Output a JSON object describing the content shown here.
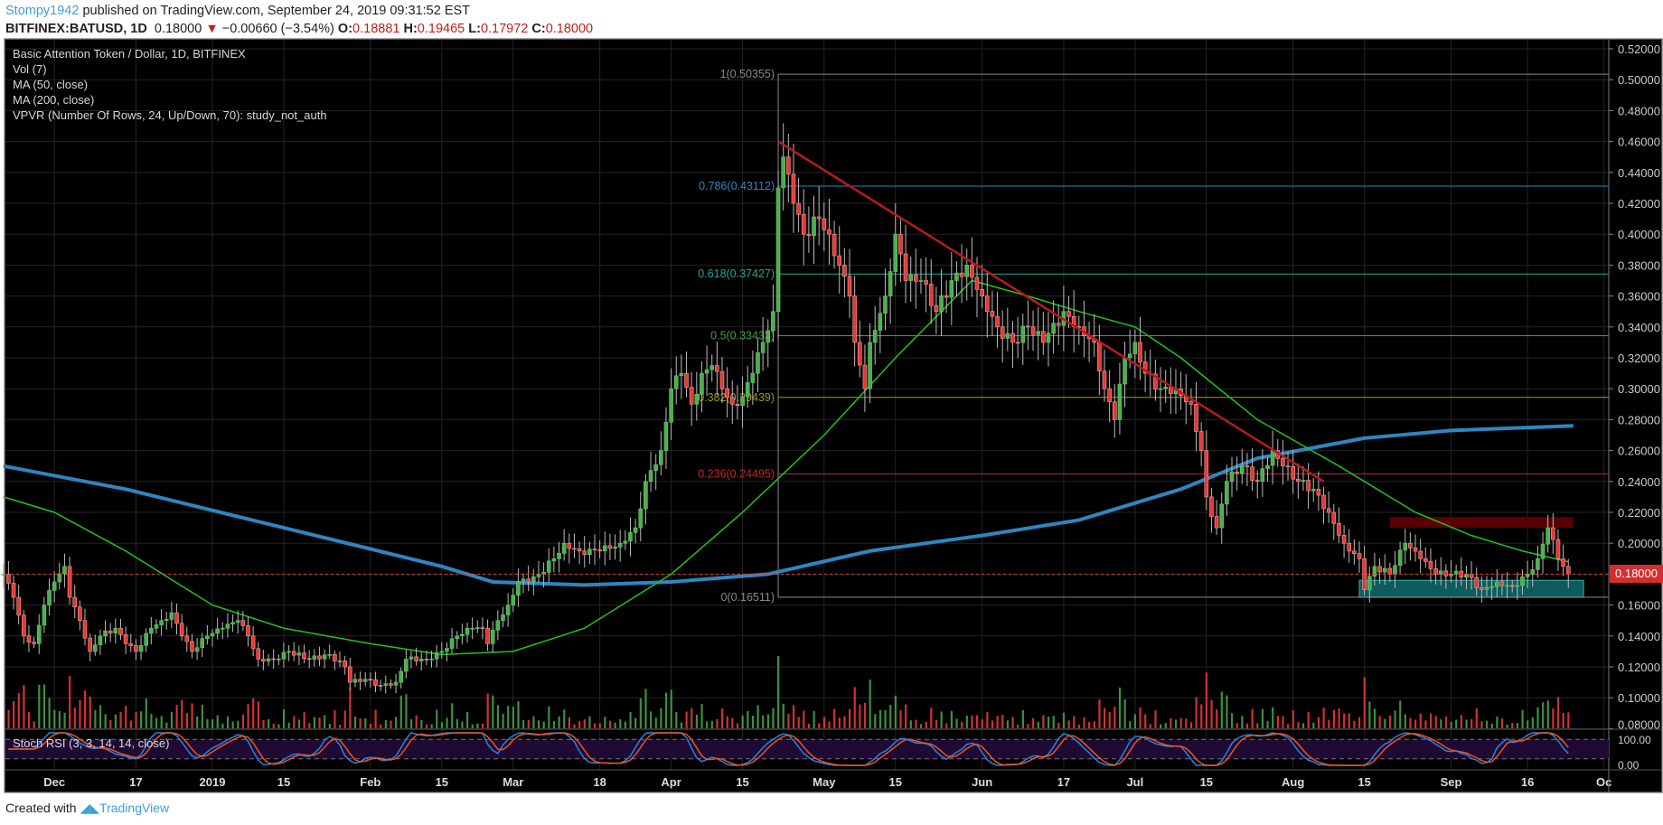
{
  "header": {
    "author": "Stompy1942",
    "published": " published on TradingView.com, September 24, 2019 09:31:52 EST",
    "symbol": "BITFINEX:BATUSD, 1D",
    "last": "0.18000",
    "change": "−0.00660 (−3.54%)",
    "o_label": "O:",
    "o": "0.18881",
    "h_label": "H:",
    "h": "0.19465",
    "l_label": "L:",
    "l": "0.17972",
    "c_label": "C:",
    "c": "0.18000",
    "down_icon": "triangle-down-icon"
  },
  "legend": [
    "Basic Attention Token / Dollar, 1D, BITFINEX",
    "Vol (7)",
    "MA (50, close)",
    "MA (200, close)",
    "VPVR (Number Of Rows, 24, Up/Down, 70): study_not_auth"
  ],
  "stoch_label": "Stoch RSI (3, 3, 14, 14, close)",
  "footer": {
    "created": "Created with",
    "brand": "TradingView"
  },
  "colors": {
    "up": "#4caf50",
    "down": "#e53935",
    "ma50": "#22c322",
    "ma200": "#2e86c1",
    "trend": "#b71c1c",
    "resistance": "#5a0000",
    "support": "#0d5c5c",
    "stoch_k": "#1e88e5",
    "stoch_d": "#f4511e",
    "stoch_band": "#1f0a33"
  },
  "chart_data": {
    "type": "candlestick",
    "title": "Basic Attention Token / Dollar, 1D, BITFINEX",
    "ylim": [
      0.0,
      0.53
    ],
    "y_ticks": [
      "0.52000",
      "0.50000",
      "0.48000",
      "0.46000",
      "0.44000",
      "0.42000",
      "0.40000",
      "0.38000",
      "0.36000",
      "0.34000",
      "0.32000",
      "0.30000",
      "0.28000",
      "0.26000",
      "0.24000",
      "0.22000",
      "0.20000",
      "0.18000",
      "0.16000",
      "0.14000",
      "0.12000",
      "0.10000",
      "0.08000"
    ],
    "x_ticks": [
      {
        "label": "Dec",
        "date": "2018-12-01"
      },
      {
        "label": "17",
        "date": "2018-12-17"
      },
      {
        "label": "2019",
        "date": "2019-01-01"
      },
      {
        "label": "15",
        "date": "2019-01-15"
      },
      {
        "label": "Feb",
        "date": "2019-02-01"
      },
      {
        "label": "15",
        "date": "2019-02-15"
      },
      {
        "label": "Mar",
        "date": "2019-03-01"
      },
      {
        "label": "18",
        "date": "2019-03-18"
      },
      {
        "label": "Apr",
        "date": "2019-04-01"
      },
      {
        "label": "15",
        "date": "2019-04-15"
      },
      {
        "label": "May",
        "date": "2019-05-01"
      },
      {
        "label": "15",
        "date": "2019-05-15"
      },
      {
        "label": "Jun",
        "date": "2019-06-01"
      },
      {
        "label": "17",
        "date": "2019-06-17"
      },
      {
        "label": "Jul",
        "date": "2019-07-01"
      },
      {
        "label": "15",
        "date": "2019-07-15"
      },
      {
        "label": "Aug",
        "date": "2019-08-01"
      },
      {
        "label": "15",
        "date": "2019-08-15"
      },
      {
        "label": "Sep",
        "date": "2019-09-01"
      },
      {
        "label": "16",
        "date": "2019-09-16"
      },
      {
        "label": "Oc",
        "date": "2019-10-01"
      }
    ],
    "current_price": "0.18000",
    "close_anchors": [
      [
        "2018-11-21",
        0.18
      ],
      [
        "2018-11-23",
        0.165
      ],
      [
        "2018-11-25",
        0.14
      ],
      [
        "2018-11-27",
        0.135
      ],
      [
        "2018-11-29",
        0.16
      ],
      [
        "2018-12-01",
        0.175
      ],
      [
        "2018-12-03",
        0.185
      ],
      [
        "2018-12-04",
        0.165
      ],
      [
        "2018-12-06",
        0.15
      ],
      [
        "2018-12-08",
        0.13
      ],
      [
        "2018-12-10",
        0.14
      ],
      [
        "2018-12-13",
        0.145
      ],
      [
        "2018-12-15",
        0.135
      ],
      [
        "2018-12-17",
        0.13
      ],
      [
        "2018-12-20",
        0.145
      ],
      [
        "2018-12-22",
        0.15
      ],
      [
        "2018-12-24",
        0.155
      ],
      [
        "2018-12-26",
        0.14
      ],
      [
        "2018-12-28",
        0.13
      ],
      [
        "2018-12-31",
        0.14
      ],
      [
        "2019-01-03",
        0.145
      ],
      [
        "2019-01-06",
        0.15
      ],
      [
        "2019-01-08",
        0.14
      ],
      [
        "2019-01-10",
        0.125
      ],
      [
        "2019-01-13",
        0.125
      ],
      [
        "2019-01-16",
        0.13
      ],
      [
        "2019-01-20",
        0.125
      ],
      [
        "2019-01-24",
        0.128
      ],
      [
        "2019-01-27",
        0.12
      ],
      [
        "2019-01-28",
        0.11
      ],
      [
        "2019-01-31",
        0.112
      ],
      [
        "2019-02-03",
        0.108
      ],
      [
        "2019-02-06",
        0.11
      ],
      [
        "2019-02-08",
        0.125
      ],
      [
        "2019-02-12",
        0.125
      ],
      [
        "2019-02-15",
        0.13
      ],
      [
        "2019-02-18",
        0.14
      ],
      [
        "2019-02-21",
        0.145
      ],
      [
        "2019-02-23",
        0.145
      ],
      [
        "2019-02-24",
        0.135
      ],
      [
        "2019-02-26",
        0.15
      ],
      [
        "2019-02-28",
        0.16
      ],
      [
        "2019-03-02",
        0.175
      ],
      [
        "2019-03-04",
        0.175
      ],
      [
        "2019-03-06",
        0.18
      ],
      [
        "2019-03-09",
        0.19
      ],
      [
        "2019-03-11",
        0.2
      ],
      [
        "2019-03-14",
        0.195
      ],
      [
        "2019-03-18",
        0.195
      ],
      [
        "2019-03-22",
        0.2
      ],
      [
        "2019-03-25",
        0.21
      ],
      [
        "2019-03-27",
        0.24
      ],
      [
        "2019-03-30",
        0.26
      ],
      [
        "2019-04-01",
        0.3
      ],
      [
        "2019-04-03",
        0.31
      ],
      [
        "2019-04-05",
        0.29
      ],
      [
        "2019-04-07",
        0.31
      ],
      [
        "2019-04-09",
        0.315
      ],
      [
        "2019-04-11",
        0.3
      ],
      [
        "2019-04-13",
        0.29
      ],
      [
        "2019-04-15",
        0.295
      ],
      [
        "2019-04-17",
        0.31
      ],
      [
        "2019-04-19",
        0.33
      ],
      [
        "2019-04-21",
        0.35
      ],
      [
        "2019-04-22",
        0.43
      ],
      [
        "2019-04-23",
        0.45
      ],
      [
        "2019-04-25",
        0.42
      ],
      [
        "2019-04-27",
        0.4
      ],
      [
        "2019-04-30",
        0.41
      ],
      [
        "2019-05-02",
        0.4
      ],
      [
        "2019-05-04",
        0.38
      ],
      [
        "2019-05-06",
        0.36
      ],
      [
        "2019-05-07",
        0.33
      ],
      [
        "2019-05-09",
        0.3
      ],
      [
        "2019-05-10",
        0.33
      ],
      [
        "2019-05-13",
        0.36
      ],
      [
        "2019-05-15",
        0.4
      ],
      [
        "2019-05-17",
        0.37
      ],
      [
        "2019-05-20",
        0.37
      ],
      [
        "2019-05-23",
        0.35
      ],
      [
        "2019-05-26",
        0.37
      ],
      [
        "2019-05-29",
        0.38
      ],
      [
        "2019-06-01",
        0.36
      ],
      [
        "2019-06-04",
        0.34
      ],
      [
        "2019-06-07",
        0.33
      ],
      [
        "2019-06-10",
        0.34
      ],
      [
        "2019-06-13",
        0.33
      ],
      [
        "2019-06-17",
        0.35
      ],
      [
        "2019-06-20",
        0.34
      ],
      [
        "2019-06-23",
        0.33
      ],
      [
        "2019-06-25",
        0.3
      ],
      [
        "2019-06-27",
        0.28
      ],
      [
        "2019-06-29",
        0.32
      ],
      [
        "2019-07-01",
        0.33
      ],
      [
        "2019-07-03",
        0.31
      ],
      [
        "2019-07-06",
        0.3
      ],
      [
        "2019-07-09",
        0.3
      ],
      [
        "2019-07-12",
        0.29
      ],
      [
        "2019-07-14",
        0.26
      ],
      [
        "2019-07-15",
        0.23
      ],
      [
        "2019-07-17",
        0.21
      ],
      [
        "2019-07-19",
        0.24
      ],
      [
        "2019-07-22",
        0.25
      ],
      [
        "2019-07-25",
        0.24
      ],
      [
        "2019-07-28",
        0.26
      ],
      [
        "2019-07-30",
        0.25
      ],
      [
        "2019-08-02",
        0.24
      ],
      [
        "2019-08-05",
        0.235
      ],
      [
        "2019-08-08",
        0.22
      ],
      [
        "2019-08-11",
        0.2
      ],
      [
        "2019-08-14",
        0.19
      ],
      [
        "2019-08-15",
        0.17
      ],
      [
        "2019-08-17",
        0.185
      ],
      [
        "2019-08-20",
        0.18
      ],
      [
        "2019-08-23",
        0.2
      ],
      [
        "2019-08-26",
        0.19
      ],
      [
        "2019-08-29",
        0.18
      ],
      [
        "2019-09-01",
        0.18
      ],
      [
        "2019-09-04",
        0.18
      ],
      [
        "2019-09-07",
        0.17
      ],
      [
        "2019-09-10",
        0.175
      ],
      [
        "2019-09-13",
        0.172
      ],
      [
        "2019-09-16",
        0.18
      ],
      [
        "2019-09-18",
        0.19
      ],
      [
        "2019-09-20",
        0.21
      ],
      [
        "2019-09-22",
        0.19
      ],
      [
        "2019-09-24",
        0.18
      ]
    ],
    "ma50": [
      [
        "2018-11-21",
        0.23
      ],
      [
        "2018-12-01",
        0.22
      ],
      [
        "2018-12-15",
        0.195
      ],
      [
        "2019-01-01",
        0.16
      ],
      [
        "2019-01-15",
        0.145
      ],
      [
        "2019-02-01",
        0.135
      ],
      [
        "2019-02-15",
        0.128
      ],
      [
        "2019-03-01",
        0.13
      ],
      [
        "2019-03-15",
        0.145
      ],
      [
        "2019-04-01",
        0.18
      ],
      [
        "2019-04-15",
        0.22
      ],
      [
        "2019-05-01",
        0.27
      ],
      [
        "2019-05-15",
        0.32
      ],
      [
        "2019-05-30",
        0.37
      ],
      [
        "2019-06-10",
        0.36
      ],
      [
        "2019-06-20",
        0.35
      ],
      [
        "2019-07-01",
        0.34
      ],
      [
        "2019-07-10",
        0.32
      ],
      [
        "2019-07-25",
        0.28
      ],
      [
        "2019-08-10",
        0.25
      ],
      [
        "2019-08-25",
        0.22
      ],
      [
        "2019-09-05",
        0.205
      ],
      [
        "2019-09-15",
        0.195
      ],
      [
        "2019-09-24",
        0.188
      ]
    ],
    "ma200": [
      [
        "2018-11-21",
        0.25
      ],
      [
        "2018-12-15",
        0.235
      ],
      [
        "2019-01-15",
        0.21
      ],
      [
        "2019-02-15",
        0.185
      ],
      [
        "2019-02-25",
        0.175
      ],
      [
        "2019-03-15",
        0.173
      ],
      [
        "2019-04-01",
        0.175
      ],
      [
        "2019-04-20",
        0.18
      ],
      [
        "2019-05-10",
        0.195
      ],
      [
        "2019-06-01",
        0.205
      ],
      [
        "2019-06-20",
        0.215
      ],
      [
        "2019-07-10",
        0.235
      ],
      [
        "2019-07-25",
        0.255
      ],
      [
        "2019-08-15",
        0.268
      ],
      [
        "2019-09-01",
        0.273
      ],
      [
        "2019-09-25",
        0.276
      ]
    ],
    "fib": {
      "start": "2019-04-22",
      "levels": [
        {
          "label": "1(0.50355)",
          "value": 0.50355,
          "color": "#8a8a8a"
        },
        {
          "label": "0.786(0.43112)",
          "value": 0.43112,
          "color": "#2e86c1"
        },
        {
          "label": "0.618(0.37427)",
          "value": 0.37427,
          "color": "#26a69a"
        },
        {
          "label": "0.5(0.33433)",
          "value": 0.33433,
          "color": "#43a047"
        },
        {
          "label": "0.382(0.29439)",
          "value": 0.29439,
          "color": "#9e9d24"
        },
        {
          "label": "0.236(0.24495)",
          "value": 0.24495,
          "color": "#c62828"
        },
        {
          "label": "0(0.16511)",
          "value": 0.16511,
          "color": "#8a8a8a"
        }
      ]
    },
    "trendline": [
      [
        "2019-04-22",
        0.46
      ],
      [
        "2019-08-07",
        0.24
      ]
    ],
    "resistance_zone": {
      "from": "2019-08-20",
      "to": "2019-09-25",
      "low": 0.21,
      "high": 0.217
    },
    "support_zone": {
      "from": "2019-08-14",
      "to": "2019-09-27",
      "low": 0.165,
      "high": 0.176
    },
    "stoch_ticks": [
      "100.00",
      "0.00"
    ]
  }
}
